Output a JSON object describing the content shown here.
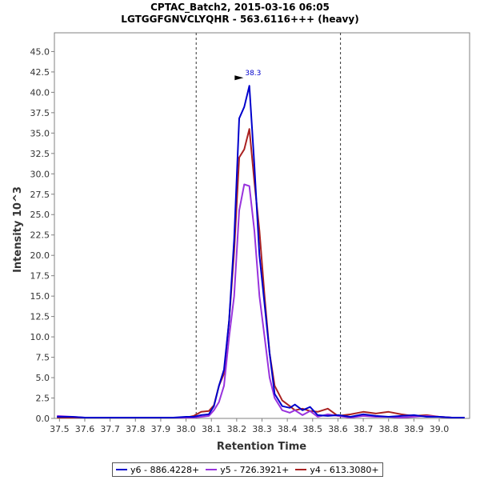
{
  "chart_data": {
    "type": "line",
    "title": "CPTAC_Batch2, 2015-03-16 06:05",
    "subtitle": "LGTGGFGNVCLYQHR - 563.6116+++ (heavy)",
    "xlabel": "Retention Time",
    "ylabel": "Intensity 10^3",
    "xlim": [
      37.48,
      39.12
    ],
    "ylim": [
      0,
      47.3
    ],
    "x_ticks": [
      "37.5",
      "37.6",
      "37.7",
      "37.8",
      "37.9",
      "38.0",
      "38.1",
      "38.2",
      "38.3",
      "38.4",
      "38.5",
      "38.6",
      "38.7",
      "38.8",
      "38.9",
      "39.0"
    ],
    "y_ticks": [
      "0.0",
      "2.5",
      "5.0",
      "7.5",
      "10.0",
      "12.5",
      "15.0",
      "17.5",
      "20.0",
      "22.5",
      "25.0",
      "27.5",
      "30.0",
      "32.5",
      "35.0",
      "37.5",
      "40.0",
      "42.5",
      "45.0"
    ],
    "vlines": [
      38.04,
      38.61
    ],
    "peak_annotation": {
      "x": 38.23,
      "y": 40.8,
      "label": "38.3"
    },
    "series": [
      {
        "name": "y6 - 886.4228+",
        "color": "#0000cc",
        "x": [
          37.49,
          37.55,
          37.6,
          37.7,
          37.8,
          37.9,
          37.95,
          38.0,
          38.03,
          38.06,
          38.09,
          38.11,
          38.13,
          38.15,
          38.17,
          38.19,
          38.21,
          38.23,
          38.25,
          38.27,
          38.29,
          38.31,
          38.33,
          38.35,
          38.38,
          38.41,
          38.43,
          38.46,
          38.49,
          38.52,
          38.56,
          38.6,
          38.65,
          38.7,
          38.75,
          38.8,
          38.85,
          38.9,
          38.95,
          39.0,
          39.05,
          39.1
        ],
        "y": [
          0.2,
          0.2,
          0.1,
          0.1,
          0.1,
          0.1,
          0.1,
          0.2,
          0.2,
          0.4,
          0.5,
          1.5,
          4.0,
          6.0,
          12.0,
          22.0,
          36.8,
          38.2,
          40.8,
          31.0,
          20.0,
          14.0,
          8.0,
          3.0,
          1.5,
          1.3,
          1.7,
          1.0,
          1.4,
          0.4,
          0.3,
          0.4,
          0.2,
          0.5,
          0.3,
          0.2,
          0.3,
          0.4,
          0.2,
          0.2,
          0.1,
          0.1
        ]
      },
      {
        "name": "y5 - 726.3921+",
        "color": "#9933dd",
        "x": [
          37.49,
          37.55,
          37.6,
          37.7,
          37.8,
          37.9,
          37.95,
          38.0,
          38.03,
          38.06,
          38.09,
          38.11,
          38.13,
          38.15,
          38.17,
          38.19,
          38.21,
          38.23,
          38.25,
          38.27,
          38.29,
          38.31,
          38.33,
          38.35,
          38.38,
          38.41,
          38.43,
          38.46,
          38.49,
          38.52,
          38.56,
          38.6,
          38.65,
          38.7,
          38.75,
          38.8,
          38.85,
          38.9,
          38.95,
          39.0,
          39.05,
          39.1
        ],
        "y": [
          0.3,
          0.2,
          0.1,
          0.1,
          0.1,
          0.1,
          0.1,
          0.1,
          0.1,
          0.2,
          0.3,
          1.0,
          2.0,
          4.0,
          10.0,
          15.0,
          25.5,
          28.7,
          28.5,
          23.0,
          15.0,
          10.0,
          5.0,
          2.5,
          1.0,
          0.7,
          1.0,
          0.4,
          0.9,
          0.2,
          0.5,
          0.3,
          0.1,
          0.3,
          0.2,
          0.2,
          0.1,
          0.2,
          0.3,
          0.2,
          0.1,
          0.1
        ]
      },
      {
        "name": "y4 - 613.3080+",
        "color": "#aa2222",
        "x": [
          37.49,
          37.55,
          37.6,
          37.7,
          37.8,
          37.9,
          37.95,
          38.0,
          38.03,
          38.06,
          38.09,
          38.11,
          38.13,
          38.15,
          38.17,
          38.19,
          38.21,
          38.23,
          38.25,
          38.27,
          38.29,
          38.31,
          38.33,
          38.35,
          38.38,
          38.41,
          38.43,
          38.46,
          38.49,
          38.52,
          38.56,
          38.6,
          38.65,
          38.7,
          38.75,
          38.8,
          38.85,
          38.9,
          38.95,
          39.0,
          39.05,
          39.1
        ],
        "y": [
          0.1,
          0.1,
          0.1,
          0.1,
          0.1,
          0.1,
          0.1,
          0.1,
          0.3,
          0.8,
          0.9,
          1.6,
          4.0,
          5.5,
          12.0,
          20.5,
          32.0,
          33.0,
          35.5,
          29.0,
          23.0,
          15.0,
          8.0,
          4.0,
          2.2,
          1.5,
          1.0,
          1.2,
          0.9,
          0.8,
          1.2,
          0.3,
          0.5,
          0.8,
          0.6,
          0.8,
          0.5,
          0.3,
          0.4,
          0.2,
          0.1,
          0.1
        ]
      }
    ]
  }
}
